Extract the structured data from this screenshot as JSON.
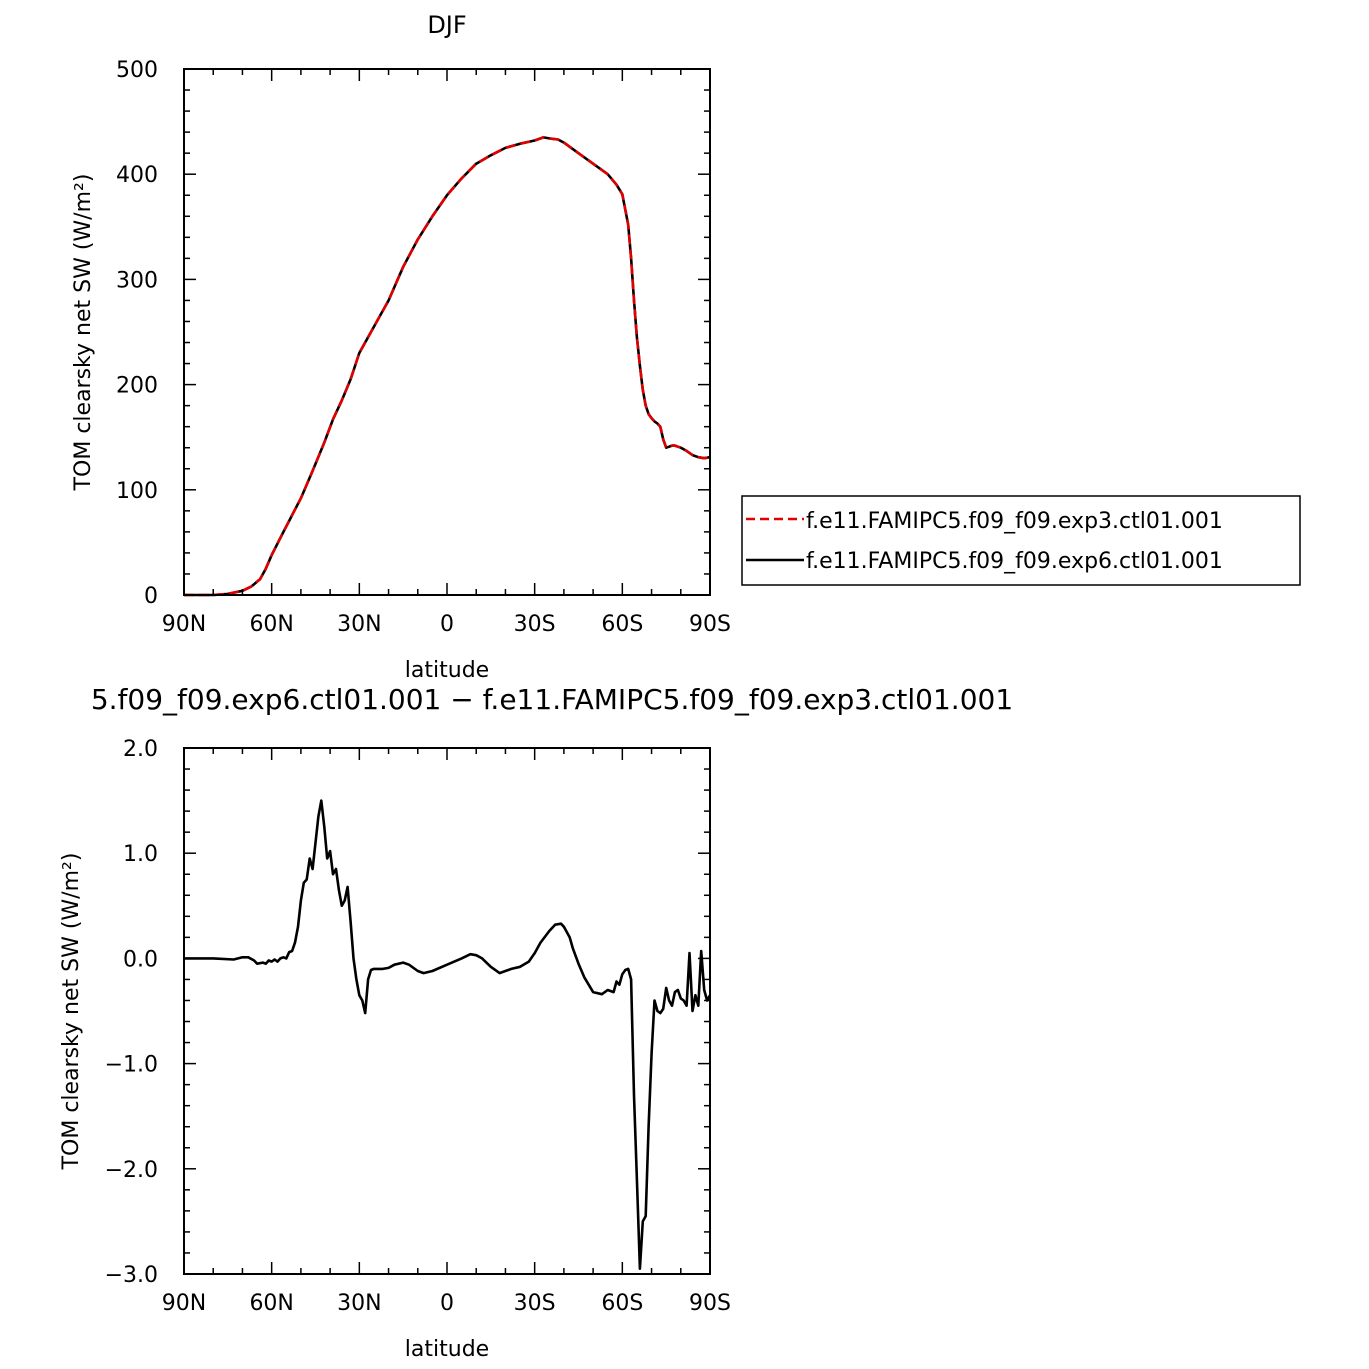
{
  "chart_data": [
    {
      "type": "line",
      "title": "DJF",
      "xlabel": "latitude",
      "ylabel": "TOM clearsky net SW (W/m²)",
      "xlim": [
        -90,
        90
      ],
      "ylim": [
        0,
        500
      ],
      "xticks": [
        -90,
        -60,
        -30,
        0,
        30,
        60,
        90
      ],
      "xtick_labels": [
        "90N",
        "60N",
        "30N",
        "0",
        "30S",
        "60S",
        "90S"
      ],
      "yticks": [
        0,
        100,
        200,
        300,
        400,
        500
      ],
      "ytick_labels": [
        "0",
        "100",
        "200",
        "300",
        "400",
        "500"
      ],
      "legend_position": "right",
      "series": [
        {
          "name": "f.e11.FAMIPC5.f09_f09.exp3.ctl01.001",
          "color": "#e00000",
          "dash": "dashed",
          "x": [
            -90,
            -80,
            -75,
            -70,
            -67,
            -64,
            -62,
            -60,
            -56,
            -50,
            -46,
            -42,
            -39,
            -36,
            -33,
            -30,
            -25,
            -20,
            -15,
            -10,
            -5,
            0,
            5,
            10,
            15,
            20,
            25,
            30,
            33,
            35,
            38,
            40,
            45,
            50,
            55,
            58,
            60,
            62,
            63,
            64,
            65,
            66,
            67,
            68,
            69,
            70,
            71,
            72,
            73,
            74,
            75,
            76,
            77,
            78,
            79,
            80,
            82,
            84,
            86,
            88,
            90
          ],
          "y": [
            0,
            0,
            1,
            4,
            8,
            15,
            25,
            38,
            60,
            92,
            118,
            145,
            167,
            185,
            205,
            230,
            255,
            280,
            312,
            338,
            360,
            380,
            396,
            410,
            418,
            425,
            429,
            432,
            435,
            434,
            433,
            430,
            420,
            410,
            400,
            390,
            381,
            352,
            320,
            280,
            245,
            218,
            195,
            180,
            172,
            168,
            165,
            163,
            160,
            148,
            140,
            141,
            142,
            142,
            141,
            140,
            137,
            133,
            131,
            130,
            131
          ]
        },
        {
          "name": "f.e11.FAMIPC5.f09_f09.exp6.ctl01.001",
          "color": "#000000",
          "dash": "solid",
          "x": [
            -90,
            -80,
            -75,
            -70,
            -67,
            -64,
            -62,
            -60,
            -56,
            -50,
            -46,
            -42,
            -39,
            -36,
            -33,
            -30,
            -25,
            -20,
            -15,
            -10,
            -5,
            0,
            5,
            10,
            15,
            20,
            25,
            30,
            33,
            35,
            38,
            40,
            45,
            50,
            55,
            58,
            60,
            62,
            63,
            64,
            65,
            66,
            67,
            68,
            69,
            70,
            71,
            72,
            73,
            74,
            75,
            76,
            77,
            78,
            79,
            80,
            82,
            84,
            86,
            88,
            90
          ],
          "y": [
            0,
            0,
            1,
            4,
            8,
            15,
            25,
            38,
            60,
            92,
            118,
            145,
            167,
            185,
            205,
            230,
            255,
            280,
            312,
            338,
            360,
            380,
            396,
            410,
            418,
            425,
            429,
            432,
            435,
            434,
            433,
            430,
            420,
            410,
            400,
            390,
            381,
            352,
            320,
            280,
            245,
            218,
            195,
            180,
            172,
            168,
            165,
            163,
            160,
            148,
            140,
            141,
            142,
            142,
            141,
            140,
            137,
            133,
            131,
            130,
            131
          ]
        }
      ]
    },
    {
      "type": "line",
      "title": "5.f09_f09.exp6.ctl01.001 − f.e11.FAMIPC5.f09_f09.exp3.ctl01.001",
      "xlabel": "latitude",
      "ylabel": "TOM clearsky net SW (W/m²)",
      "xlim": [
        -90,
        90
      ],
      "ylim": [
        -3.0,
        2.0
      ],
      "xticks": [
        -90,
        -60,
        -30,
        0,
        30,
        60,
        90
      ],
      "xtick_labels": [
        "90N",
        "60N",
        "30N",
        "0",
        "30S",
        "60S",
        "90S"
      ],
      "yticks": [
        -3.0,
        -2.0,
        -1.0,
        0.0,
        1.0,
        2.0
      ],
      "ytick_labels": [
        "−3.0",
        "−2.0",
        "−1.0",
        "0.0",
        "1.0",
        "2.0"
      ],
      "series": [
        {
          "color": "#000000",
          "dash": "solid",
          "x": [
            -90,
            -80,
            -73,
            -70,
            -68,
            -66,
            -65,
            -63,
            -62,
            -61,
            -60,
            -59,
            -58,
            -57,
            -56,
            -55,
            -54,
            -53,
            -52,
            -51,
            -50,
            -49,
            -48,
            -47,
            -46,
            -45,
            -44,
            -43,
            -42,
            -41,
            -40,
            -39,
            -38,
            -37,
            -36,
            -35,
            -34,
            -33,
            -32,
            -31,
            -30,
            -29,
            -28,
            -27,
            -26,
            -25,
            -22,
            -20,
            -18,
            -15,
            -13,
            -10,
            -8,
            -5,
            0,
            5,
            8,
            10,
            12,
            15,
            18,
            20,
            22,
            25,
            28,
            30,
            32,
            35,
            37,
            39,
            40,
            42,
            43,
            45,
            47,
            50,
            53,
            55,
            57,
            58,
            59,
            60,
            61,
            62,
            63,
            64,
            65,
            66,
            67,
            68,
            69,
            70,
            71,
            72,
            73,
            74,
            75,
            76,
            77,
            78,
            79,
            80,
            81,
            82,
            83,
            84,
            85,
            86,
            87,
            88,
            89,
            90
          ],
          "y": [
            0,
            0,
            -0.01,
            0.01,
            0.01,
            -0.02,
            -0.05,
            -0.04,
            -0.05,
            -0.02,
            -0.03,
            -0.01,
            -0.03,
            0.0,
            0.01,
            0.0,
            0.06,
            0.07,
            0.15,
            0.3,
            0.55,
            0.72,
            0.75,
            0.95,
            0.85,
            1.1,
            1.35,
            1.5,
            1.25,
            0.95,
            1.02,
            0.8,
            0.85,
            0.65,
            0.5,
            0.55,
            0.68,
            0.35,
            0.0,
            -0.2,
            -0.35,
            -0.4,
            -0.52,
            -0.2,
            -0.11,
            -0.1,
            -0.1,
            -0.09,
            -0.06,
            -0.04,
            -0.06,
            -0.12,
            -0.14,
            -0.12,
            -0.06,
            0.0,
            0.04,
            0.03,
            0.0,
            -0.08,
            -0.14,
            -0.12,
            -0.1,
            -0.08,
            -0.03,
            0.05,
            0.15,
            0.26,
            0.32,
            0.33,
            0.3,
            0.2,
            0.1,
            -0.05,
            -0.18,
            -0.32,
            -0.34,
            -0.3,
            -0.32,
            -0.22,
            -0.25,
            -0.15,
            -0.11,
            -0.1,
            -0.2,
            -1.3,
            -2.1,
            -2.95,
            -2.5,
            -2.45,
            -1.6,
            -0.9,
            -0.4,
            -0.5,
            -0.52,
            -0.48,
            -0.28,
            -0.4,
            -0.45,
            -0.32,
            -0.3,
            -0.38,
            -0.4,
            -0.45,
            0.05,
            -0.5,
            -0.35,
            -0.45,
            0.07,
            -0.3,
            -0.4,
            -0.35
          ]
        }
      ]
    }
  ]
}
